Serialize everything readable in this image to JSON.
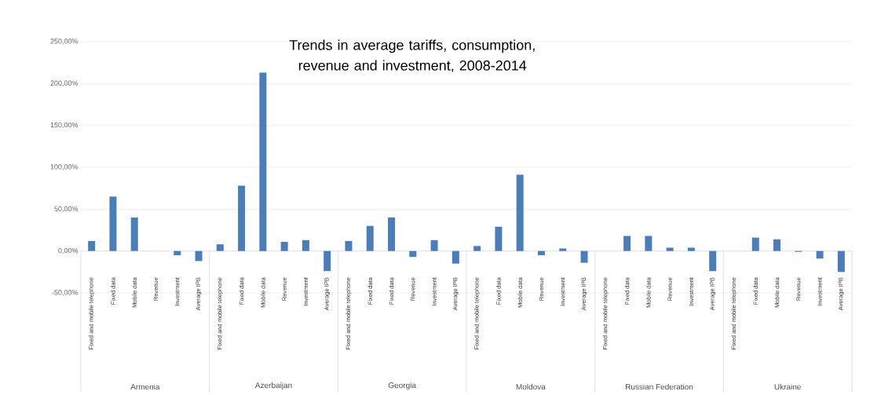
{
  "chart_data": {
    "type": "bar",
    "title": "Trends in average tariffs, consumption, revenue and investment, 2008-2014",
    "categories": [
      "Fixed and mobile telephone",
      "Fixed data",
      "Mobile data",
      "Revenue",
      "Investment",
      "Average IPB",
      "Fixed and mobile telephone",
      "Fixed data",
      "Mobile data",
      "Revenue",
      "Investment",
      "Average IPB",
      "Fixed and mobile telephone",
      "Fixed data",
      "Fixed data",
      "Revenue",
      "Investment",
      "Average IPB",
      "Fixed and mobile telephone",
      "Fixed data",
      "Mobile data",
      "Revenue",
      "Investment",
      "Average IPB",
      "Fixed and mobile telephone",
      "Fixed data",
      "Mobile data",
      "Revenue",
      "Investment",
      "Average IPB",
      "Fixed and mobile telephone",
      "Fixed data",
      "Mobile data",
      "Revenue",
      "Investment",
      "Average IPB"
    ],
    "values": [
      12,
      65,
      40,
      0,
      -5,
      -12,
      8,
      78,
      213,
      11,
      13,
      -24,
      12,
      30,
      40,
      -7,
      13,
      -15,
      6,
      29,
      91,
      -5,
      3,
      -14,
      0,
      18,
      18,
      4,
      4,
      -24,
      0,
      16,
      14,
      -1,
      -9,
      -25
    ],
    "color": "#4a7ebb",
    "annotations": [
      "Armenia",
      "Azerbaijan",
      "Georgia",
      "Moldova",
      "Russian Federation",
      "Ukraine"
    ],
    "ylim": [
      -50,
      250
    ],
    "yticks": [
      {
        "value": -50,
        "label": "-50,00%"
      },
      {
        "value": 0,
        "label": "0,00%"
      },
      {
        "value": 50,
        "label": "50,00%"
      },
      {
        "value": 100,
        "label": "100,00%"
      },
      {
        "value": 150,
        "label": "150,00%"
      },
      {
        "value": 200,
        "label": "200,00%"
      },
      {
        "value": 250,
        "label": "250,00%"
      }
    ],
    "grid": "y"
  }
}
